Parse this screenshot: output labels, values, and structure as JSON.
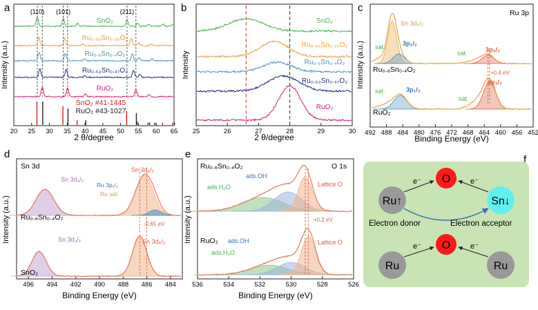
{
  "chart_data": [
    {
      "panel": "a",
      "type": "line",
      "xlabel": "2 θ/degree",
      "ylabel": "Intensity (a.u.)",
      "xlim": [
        20,
        65
      ],
      "xticks": [
        20,
        25,
        30,
        35,
        40,
        45,
        50,
        55,
        60,
        65
      ],
      "peak_labels": [
        {
          "label": "(110)",
          "x": 26.6
        },
        {
          "label": "(101)",
          "x": 33.9
        },
        {
          "label": "(211)",
          "x": 51.8
        }
      ],
      "series": [
        {
          "name": "SnO₂",
          "color": "#4caf50",
          "peaks": [
            [
              26.6,
              1.0
            ],
            [
              33.9,
              0.8
            ],
            [
              37.9,
              0.3
            ],
            [
              51.8,
              0.7
            ],
            [
              54.8,
              0.3
            ],
            [
              57.8,
              0.2
            ],
            [
              61.9,
              0.2
            ],
            [
              64.7,
              0.2
            ]
          ]
        },
        {
          "name": "Ru₀.₆₅Sn₀.₃₅O₂",
          "color": "#e8a33c",
          "peaks": [
            [
              27.0,
              0.9
            ],
            [
              34.3,
              0.8
            ],
            [
              39.5,
              0.2
            ],
            [
              53.0,
              0.7
            ],
            [
              55.0,
              0.3
            ],
            [
              58.5,
              0.2
            ]
          ]
        },
        {
          "name": "Ru₀.₆Sn₀.₄O₂",
          "color": "#4a90c2",
          "peaks": [
            [
              27.1,
              0.9
            ],
            [
              34.5,
              0.8
            ],
            [
              39.8,
              0.2
            ],
            [
              53.3,
              0.7
            ],
            [
              55.2,
              0.3
            ],
            [
              58.8,
              0.2
            ]
          ]
        },
        {
          "name": "Ru₀.₅₃Sn₀.₄₇O₂",
          "color": "#1f2f7a",
          "peaks": [
            [
              27.3,
              0.9
            ],
            [
              34.7,
              0.8
            ],
            [
              40.0,
              0.2
            ],
            [
              53.6,
              0.7
            ],
            [
              55.4,
              0.3
            ]
          ]
        },
        {
          "name": "RuO₂",
          "color": "#d81b7a",
          "peaks": [
            [
              28.0,
              1.0
            ],
            [
              35.1,
              0.9
            ],
            [
              40.1,
              0.3
            ],
            [
              54.3,
              0.8
            ],
            [
              58.0,
              0.2
            ]
          ]
        }
      ],
      "references": [
        {
          "name": "SnO₂ #41-1445",
          "color": "#d81b1b",
          "lines": [
            [
              26.6,
              1.0
            ],
            [
              33.9,
              0.8
            ],
            [
              37.9,
              0.2
            ],
            [
              51.8,
              0.6
            ],
            [
              54.8,
              0.15
            ],
            [
              57.8,
              0.1
            ],
            [
              61.9,
              0.1
            ],
            [
              64.7,
              0.1
            ]
          ]
        },
        {
          "name": "RuO₂ #43-1027",
          "color": "#222222",
          "lines": [
            [
              28.0,
              1.0
            ],
            [
              35.1,
              0.7
            ],
            [
              40.1,
              0.2
            ],
            [
              54.3,
              0.5
            ],
            [
              58.0,
              0.1
            ],
            [
              59.5,
              0.1
            ],
            [
              65.0,
              0.1
            ]
          ]
        }
      ]
    },
    {
      "panel": "b",
      "type": "line",
      "xlabel": "2 θ/degree",
      "ylabel": "Intensity",
      "xlim": [
        25,
        30
      ],
      "xticks": [
        25,
        26,
        27,
        28,
        29,
        30
      ],
      "dashed_lines": [
        26.6,
        28.0
      ],
      "series": [
        {
          "name": "SnO₂",
          "color": "#4caf50",
          "center": 26.6
        },
        {
          "name": "Ru₀.₆₅Sn₀.₃₅O₂",
          "color": "#e8a33c",
          "center": 27.5
        },
        {
          "name": "Ru₀.₆Sn₀.₄O₂",
          "color": "#4a90c2",
          "center": 27.6
        },
        {
          "name": "Ru₀.₅₃Sn₀.₄₇O₂",
          "color": "#1f2f7a",
          "center": 27.8
        },
        {
          "name": "RuO₂",
          "color": "#d81b7a",
          "center": 28.0
        }
      ]
    },
    {
      "panel": "c",
      "type": "line",
      "title": "Ru 3p",
      "xlabel": "Binding Energy (eV)",
      "ylabel": "Intensity (a.u.)",
      "xlim": [
        492,
        452
      ],
      "xticks": [
        492,
        488,
        484,
        480,
        476,
        472,
        468,
        464,
        460,
        456,
        452
      ],
      "samples": [
        "Ru₀.₆Sn₀.₄O₂",
        "RuO₂"
      ],
      "labels": [
        "Sn 3d₅/₂",
        "3p₁/₂",
        "3p₃/₂",
        "sat.",
        "+0.4 eV"
      ]
    },
    {
      "panel": "d",
      "type": "line",
      "title": "Sn 3d",
      "xlabel": "Binding Energy (eV)",
      "ylabel": "Intensity (a.u.)",
      "xlim": [
        497,
        483
      ],
      "xticks": [
        496,
        494,
        492,
        490,
        488,
        486,
        484
      ],
      "samples": [
        "Ru₀.₆Sn₀.₄O₂",
        "SnO₂"
      ],
      "labels": [
        "Sn 3d₃/₂",
        "Sn 3d₅/₂",
        "Ru 3p₁/₂",
        "Ru sat.",
        "-0.65 eV"
      ]
    },
    {
      "panel": "e",
      "type": "line",
      "title": "O 1s",
      "xlabel": "Binding Energy (eV)",
      "ylabel": "Intensity (a.u.)",
      "xlim": [
        536,
        526
      ],
      "xticks": [
        536,
        534,
        532,
        530,
        528,
        526
      ],
      "samples": [
        "Ru₀.₆Sn₀.₄O₂",
        "RuO₂"
      ],
      "labels": [
        "ads.OH",
        "ads.H₂O",
        "Lattice O",
        "+0.2 eV"
      ]
    }
  ],
  "panel_letters": [
    "a",
    "b",
    "c",
    "d",
    "e",
    "f"
  ],
  "diagram_f": {
    "top": {
      "left": "Ru↑",
      "center": "O",
      "right": "Sn↓",
      "electron": "e⁻"
    },
    "bottom": {
      "left": "Ru",
      "center": "O",
      "right": "Ru",
      "electron": "e⁻"
    },
    "donor_label": "Electron donor",
    "acceptor_label": "Electron acceptor"
  },
  "colors": {
    "green": "#4caf50",
    "orange": "#e8a33c",
    "lightblue": "#4a90c2",
    "navy": "#1f2f7a",
    "magenta": "#d81b7a",
    "red": "#d81b1b",
    "fill_green": "#8cc98c",
    "fill_orange": "#f2b48a",
    "fill_purple": "#c7a4d6",
    "fill_blue": "#9fb5dd",
    "panel_f_bg": "#c9e4b3",
    "o_red": "#ff1a1a",
    "sn_cyan": "#5ff0f0",
    "ru_gray": "#999999"
  }
}
